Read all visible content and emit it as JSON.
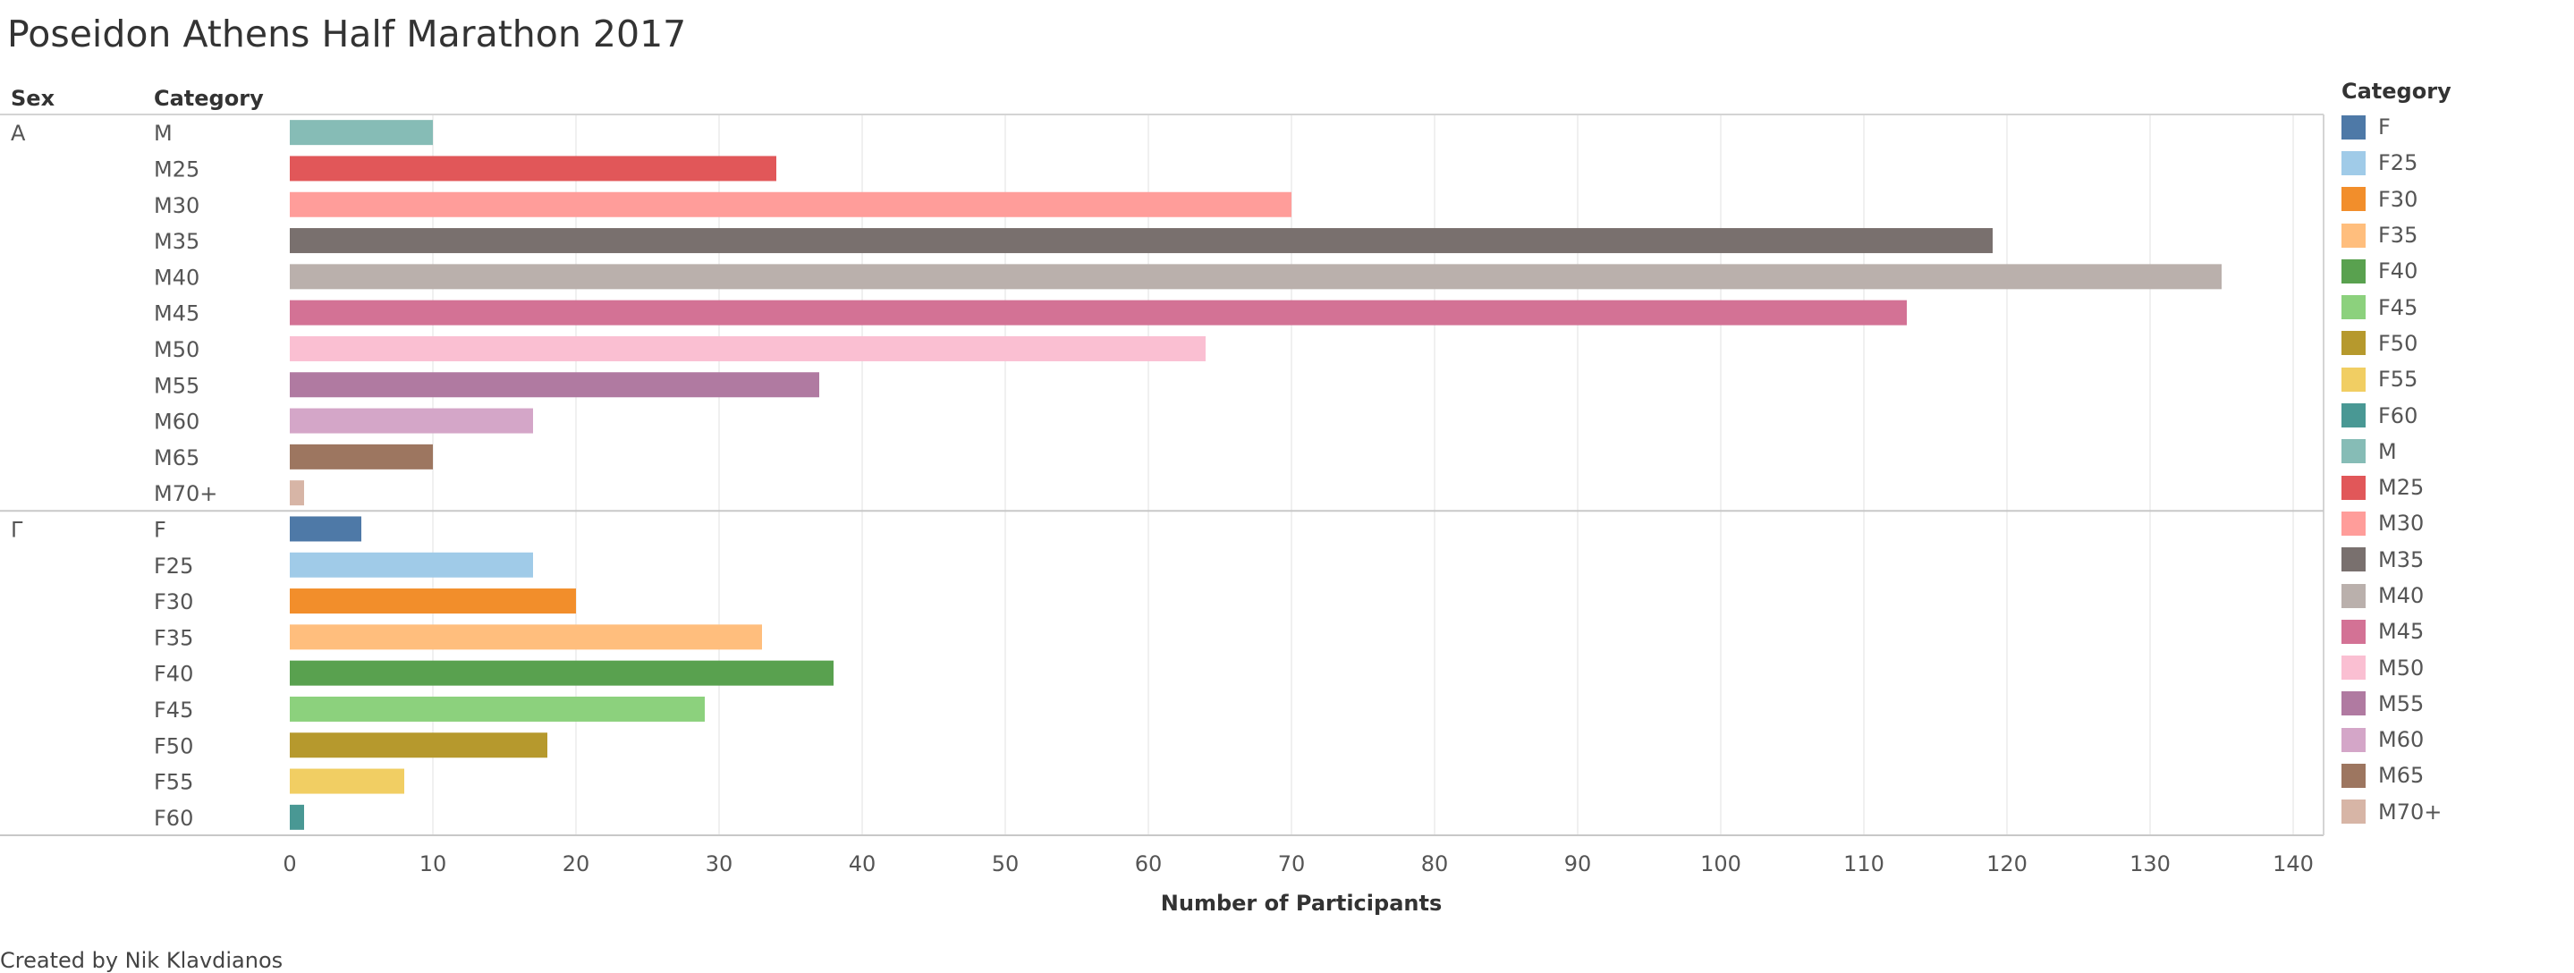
{
  "title": "Poseidon Athens Half Marathon 2017",
  "caption": "Created by Nik Klavdianos",
  "chart_data": {
    "type": "bar",
    "orientation": "horizontal",
    "row_headers": [
      "Sex",
      "Category"
    ],
    "xlabel": "Number of Participants",
    "xlim": [
      0,
      140
    ],
    "xticks": [
      0,
      10,
      20,
      30,
      40,
      50,
      60,
      70,
      80,
      90,
      100,
      110,
      120,
      130,
      140
    ],
    "grid": true,
    "groups": [
      {
        "sex": "A",
        "bars": [
          {
            "category": "M",
            "value": 10
          },
          {
            "category": "M25",
            "value": 34
          },
          {
            "category": "M30",
            "value": 70
          },
          {
            "category": "M35",
            "value": 119
          },
          {
            "category": "M40",
            "value": 135
          },
          {
            "category": "M45",
            "value": 113
          },
          {
            "category": "M50",
            "value": 64
          },
          {
            "category": "M55",
            "value": 37
          },
          {
            "category": "M60",
            "value": 17
          },
          {
            "category": "M65",
            "value": 10
          },
          {
            "category": "M70+",
            "value": 1
          }
        ]
      },
      {
        "sex": "Γ",
        "bars": [
          {
            "category": "F",
            "value": 5
          },
          {
            "category": "F25",
            "value": 17
          },
          {
            "category": "F30",
            "value": 20
          },
          {
            "category": "F35",
            "value": 33
          },
          {
            "category": "F40",
            "value": 38
          },
          {
            "category": "F45",
            "value": 29
          },
          {
            "category": "F50",
            "value": 18
          },
          {
            "category": "F55",
            "value": 8
          },
          {
            "category": "F60",
            "value": 1
          }
        ]
      }
    ],
    "legend": {
      "title": "Category",
      "position": "right",
      "items": [
        {
          "label": "F",
          "color": "#4e79a7"
        },
        {
          "label": "F25",
          "color": "#a0cbe8"
        },
        {
          "label": "F30",
          "color": "#f28e2b"
        },
        {
          "label": "F35",
          "color": "#ffbe7d"
        },
        {
          "label": "F40",
          "color": "#59a14f"
        },
        {
          "label": "F45",
          "color": "#8cd17d"
        },
        {
          "label": "F50",
          "color": "#b6992d"
        },
        {
          "label": "F55",
          "color": "#f1ce63"
        },
        {
          "label": "F60",
          "color": "#499894"
        },
        {
          "label": "M",
          "color": "#86bcb6"
        },
        {
          "label": "M25",
          "color": "#e15759"
        },
        {
          "label": "M30",
          "color": "#ff9d9a"
        },
        {
          "label": "M35",
          "color": "#79706e"
        },
        {
          "label": "M40",
          "color": "#bab0ac"
        },
        {
          "label": "M45",
          "color": "#d37295"
        },
        {
          "label": "M50",
          "color": "#fabfd2"
        },
        {
          "label": "M55",
          "color": "#b07aa1"
        },
        {
          "label": "M60",
          "color": "#d4a6c8"
        },
        {
          "label": "M65",
          "color": "#9d7660"
        },
        {
          "label": "M70+",
          "color": "#d7b5a6"
        }
      ]
    }
  }
}
